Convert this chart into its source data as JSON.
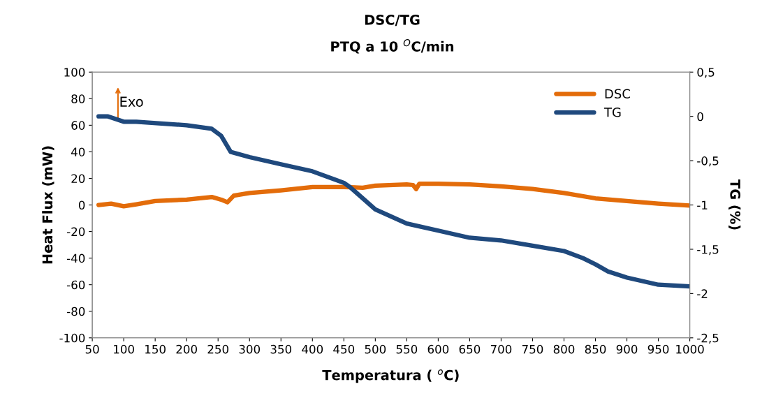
{
  "chart_data": {
    "type": "line",
    "title": "DSC/TG",
    "subtitle": "PTQ a 10 $^{O}$C/min",
    "xlabel": "Temperatura ( $^{o}$C)",
    "ylabel": "Heat Flux (mW)",
    "y2label": "TG (%)",
    "annotations": [
      "Exo"
    ],
    "xlim": [
      50,
      1000
    ],
    "xticks": [
      50,
      100,
      150,
      200,
      250,
      300,
      350,
      400,
      450,
      500,
      550,
      600,
      650,
      700,
      750,
      800,
      850,
      900,
      950,
      1000
    ],
    "ylim": [
      -100,
      100
    ],
    "yticks": [
      -100,
      -80,
      -60,
      -40,
      -20,
      0,
      20,
      40,
      60,
      80,
      100
    ],
    "y2lim": [
      -2.5,
      0.5
    ],
    "y2ticks": [
      {
        "value": -2.5,
        "label": "-2,5"
      },
      -2,
      {
        "value": -1.5,
        "label": "-1,5"
      },
      -1,
      {
        "value": -0.5,
        "label": "-0,5"
      },
      0,
      {
        "value": 0.5,
        "label": "0,5"
      }
    ],
    "grid": false,
    "legend": "top right",
    "marker": "none",
    "line_style": "solid",
    "series": [
      {
        "name": "DSC",
        "color": "#e36c0a",
        "x": [
          60,
          80,
          100,
          120,
          150,
          200,
          240,
          255,
          265,
          275,
          300,
          350,
          400,
          450,
          480,
          500,
          550,
          560,
          565,
          570,
          600,
          650,
          700,
          750,
          800,
          850,
          900,
          950,
          1000
        ],
        "values": [
          0,
          1,
          -1,
          0.5,
          3,
          4,
          6,
          4,
          2,
          7,
          9,
          11,
          13.5,
          13.5,
          13,
          14.5,
          15.5,
          15,
          12,
          16,
          16,
          15.5,
          14,
          12,
          9,
          5,
          3,
          1,
          -0.5
        ]
      },
      {
        "name": "TG",
        "color": "#1f497d",
        "axis": "y2",
        "x": [
          60,
          75,
          100,
          120,
          200,
          240,
          255,
          270,
          300,
          350,
          400,
          450,
          460,
          500,
          550,
          600,
          650,
          700,
          750,
          800,
          830,
          850,
          870,
          900,
          950,
          1000
        ],
        "values": [
          0,
          0,
          -0.06,
          -0.06,
          -0.1,
          -0.14,
          -0.22,
          -0.4,
          -0.46,
          -0.54,
          -0.62,
          -0.75,
          -0.8,
          -1.05,
          -1.21,
          -1.29,
          -1.37,
          -1.4,
          -1.46,
          -1.52,
          -1.6,
          -1.67,
          -1.75,
          -1.82,
          -1.9,
          -1.92
        ]
      }
    ]
  }
}
